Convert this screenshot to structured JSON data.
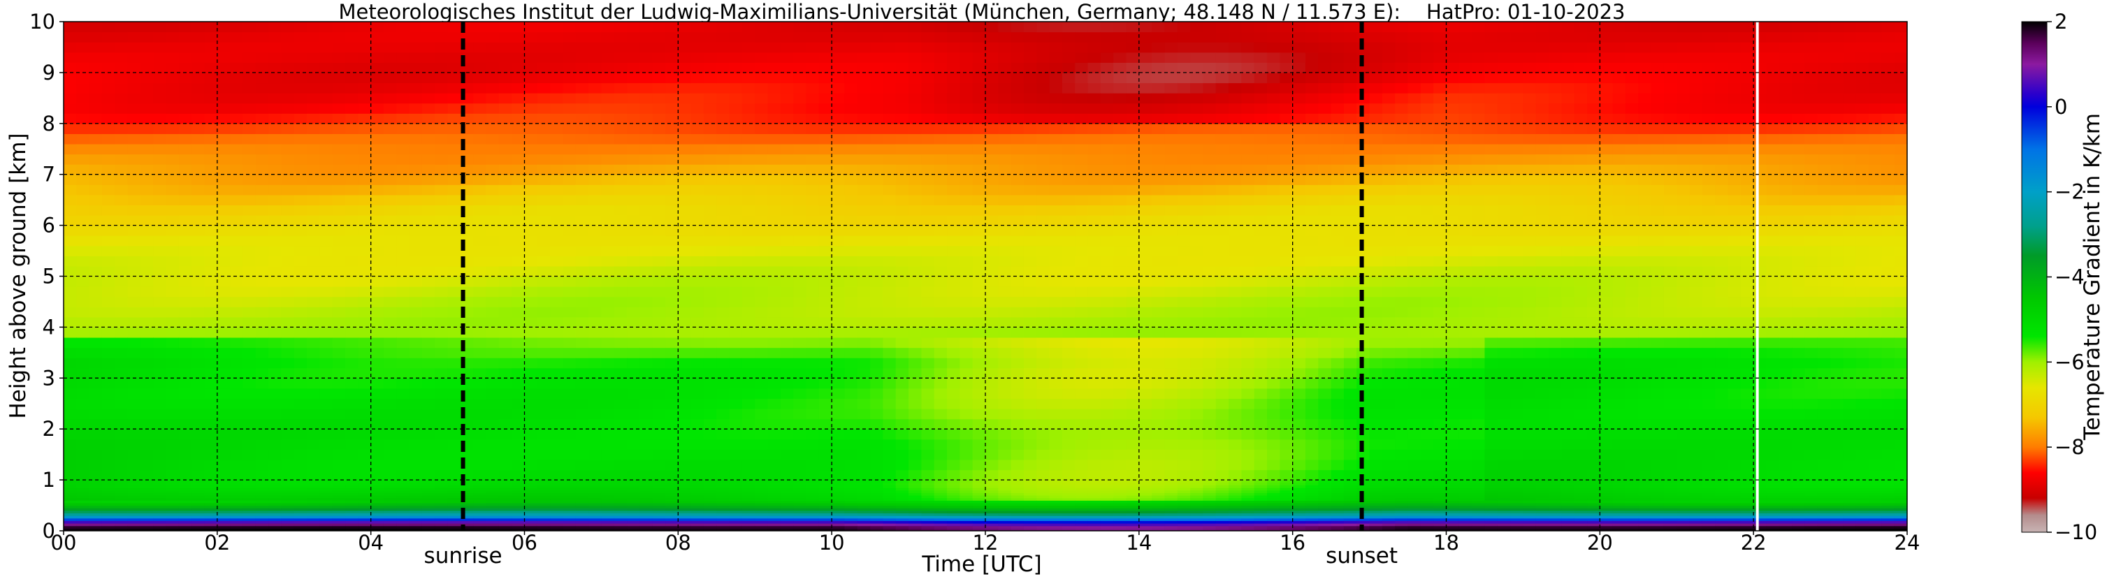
{
  "chart_data": {
    "type": "heatmap",
    "title": "Meteorologisches Institut der Ludwig-Maximilians-Universität (München, Germany; 48.148 N / 11.573 E):    HatPro: 01-10-2023",
    "xlabel": "Time [UTC]",
    "ylabel": "Height above ground [km]",
    "xlim": [
      0,
      24
    ],
    "ylim": [
      0,
      10
    ],
    "x_ticks": [
      0,
      2,
      4,
      6,
      8,
      10,
      12,
      14,
      16,
      18,
      20,
      22,
      24
    ],
    "x_tick_labels": [
      "00",
      "02",
      "04",
      "06",
      "08",
      "10",
      "12",
      "14",
      "16",
      "18",
      "20",
      "22",
      "24"
    ],
    "y_ticks": [
      0,
      1,
      2,
      3,
      4,
      5,
      6,
      7,
      8,
      9,
      10
    ],
    "y_tick_labels": [
      "0",
      "1",
      "2",
      "3",
      "4",
      "5",
      "6",
      "7",
      "8",
      "9",
      "10"
    ],
    "grid": true,
    "events": [
      {
        "label": "sunrise",
        "time": 5.2
      },
      {
        "label": "sunset",
        "time": 16.9
      }
    ],
    "data_gap_time": 22.05,
    "colorbar": {
      "label": "Temperature Gradient in K/km",
      "range": [
        -10,
        2
      ],
      "ticks": [
        2,
        0,
        -2,
        -4,
        -6,
        -8,
        -10
      ],
      "tick_labels": [
        "2",
        "0",
        "−2",
        "−4",
        "−6",
        "−8",
        "−10"
      ],
      "stops": [
        {
          "value": 2,
          "color": "#000000"
        },
        {
          "value": 1.5,
          "color": "#5a005a"
        },
        {
          "value": 1,
          "color": "#8c1aa0"
        },
        {
          "value": 0.3,
          "color": "#2a00cc"
        },
        {
          "value": 0,
          "color": "#0000dc"
        },
        {
          "value": -1,
          "color": "#0073e6"
        },
        {
          "value": -2,
          "color": "#00a0c8"
        },
        {
          "value": -2.8,
          "color": "#00a08c"
        },
        {
          "value": -3.5,
          "color": "#009b28"
        },
        {
          "value": -4.5,
          "color": "#00c800"
        },
        {
          "value": -5.4,
          "color": "#00e600"
        },
        {
          "value": -6,
          "color": "#a0f000"
        },
        {
          "value": -6.6,
          "color": "#e6e600"
        },
        {
          "value": -7.3,
          "color": "#f5c800"
        },
        {
          "value": -8,
          "color": "#ff7d00"
        },
        {
          "value": -8.6,
          "color": "#ff0000"
        },
        {
          "value": -9.2,
          "color": "#c80000"
        },
        {
          "value": -9.6,
          "color": "#b48c8c"
        },
        {
          "value": -10,
          "color": "#c8b4b4"
        }
      ]
    },
    "field": {
      "profile": [
        {
          "h": 0.0,
          "v": 2.0
        },
        {
          "h": 0.08,
          "v": 1.8
        },
        {
          "h": 0.18,
          "v": 0.5
        },
        {
          "h": 0.3,
          "v": -2.2
        },
        {
          "h": 0.45,
          "v": -3.8
        },
        {
          "h": 0.6,
          "v": -4.8
        },
        {
          "h": 0.9,
          "v": -5.3
        },
        {
          "h": 2.0,
          "v": -5.4
        },
        {
          "h": 3.3,
          "v": -5.6
        },
        {
          "h": 3.8,
          "v": -6.0
        },
        {
          "h": 4.5,
          "v": -6.2
        },
        {
          "h": 5.5,
          "v": -6.6
        },
        {
          "h": 6.3,
          "v": -7.0
        },
        {
          "h": 7.0,
          "v": -7.6
        },
        {
          "h": 7.6,
          "v": -8.0
        },
        {
          "h": 8.2,
          "v": -8.5
        },
        {
          "h": 9.0,
          "v": -8.8
        },
        {
          "h": 10.0,
          "v": -8.9
        }
      ]
    }
  }
}
